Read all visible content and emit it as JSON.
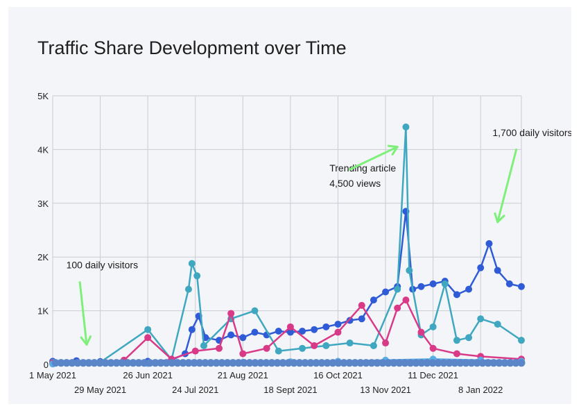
{
  "chart_data": {
    "type": "line",
    "title": "Traffic Share Development over Time",
    "xlabel": "",
    "ylabel": "",
    "x_range": [
      "2021-05-01",
      "2022-02-01"
    ],
    "ylim": [
      0,
      5000
    ],
    "y_ticks": [
      {
        "value": 0,
        "label": "0"
      },
      {
        "value": 1000,
        "label": "1K"
      },
      {
        "value": 2000,
        "label": "2K"
      },
      {
        "value": 3000,
        "label": "3K"
      },
      {
        "value": 4000,
        "label": "4K"
      },
      {
        "value": 5000,
        "label": "5K"
      }
    ],
    "x_ticks": [
      {
        "date": "2021-05-01",
        "label": "1 May 2021"
      },
      {
        "date": "2021-05-29",
        "label": "29 May 2021"
      },
      {
        "date": "2021-06-26",
        "label": "26 Jun 2021"
      },
      {
        "date": "2021-07-24",
        "label": "24 Jul 2021"
      },
      {
        "date": "2021-08-21",
        "label": "21 Aug 2021"
      },
      {
        "date": "2021-09-18",
        "label": "18 Sept 2021"
      },
      {
        "date": "2021-10-16",
        "label": "16 Oct 2021"
      },
      {
        "date": "2021-11-13",
        "label": "13 Nov 2021"
      },
      {
        "date": "2021-12-11",
        "label": "11 Dec 2021"
      },
      {
        "date": "2022-01-08",
        "label": "8 Jan 2022"
      }
    ],
    "grid": true,
    "legend": "none",
    "series": [
      {
        "color": "#2f5bd6",
        "points": [
          [
            "2021-05-01",
            60
          ],
          [
            "2021-05-15",
            70
          ],
          [
            "2021-05-29",
            55
          ],
          [
            "2021-06-12",
            45
          ],
          [
            "2021-06-26",
            60
          ],
          [
            "2021-07-10",
            80
          ],
          [
            "2021-07-18",
            200
          ],
          [
            "2021-07-22",
            650
          ],
          [
            "2021-07-26",
            900
          ],
          [
            "2021-07-30",
            500
          ],
          [
            "2021-08-07",
            450
          ],
          [
            "2021-08-14",
            550
          ],
          [
            "2021-08-21",
            500
          ],
          [
            "2021-08-28",
            600
          ],
          [
            "2021-09-04",
            550
          ],
          [
            "2021-09-11",
            620
          ],
          [
            "2021-09-18",
            600
          ],
          [
            "2021-09-25",
            620
          ],
          [
            "2021-10-02",
            650
          ],
          [
            "2021-10-09",
            700
          ],
          [
            "2021-10-16",
            750
          ],
          [
            "2021-10-23",
            820
          ],
          [
            "2021-10-30",
            850
          ],
          [
            "2021-11-06",
            1200
          ],
          [
            "2021-11-13",
            1350
          ],
          [
            "2021-11-20",
            1450
          ],
          [
            "2021-11-25",
            2850
          ],
          [
            "2021-11-29",
            1400
          ],
          [
            "2021-12-04",
            1450
          ],
          [
            "2021-12-11",
            1500
          ],
          [
            "2021-12-18",
            1550
          ],
          [
            "2021-12-25",
            1300
          ],
          [
            "2022-01-01",
            1400
          ],
          [
            "2022-01-08",
            1800
          ],
          [
            "2022-01-13",
            2250
          ],
          [
            "2022-01-18",
            1750
          ],
          [
            "2022-01-25",
            1500
          ],
          [
            "2022-02-01",
            1450
          ]
        ]
      },
      {
        "color": "#3fa7bf",
        "points": [
          [
            "2021-05-01",
            40
          ],
          [
            "2021-05-29",
            40
          ],
          [
            "2021-06-26",
            650
          ],
          [
            "2021-07-10",
            90
          ],
          [
            "2021-07-20",
            1400
          ],
          [
            "2021-07-22",
            1880
          ],
          [
            "2021-07-25",
            1650
          ],
          [
            "2021-07-29",
            350
          ],
          [
            "2021-08-14",
            850
          ],
          [
            "2021-08-28",
            1000
          ],
          [
            "2021-09-11",
            250
          ],
          [
            "2021-09-25",
            300
          ],
          [
            "2021-10-09",
            350
          ],
          [
            "2021-10-23",
            400
          ],
          [
            "2021-11-06",
            350
          ],
          [
            "2021-11-20",
            1400
          ],
          [
            "2021-11-25",
            4420
          ],
          [
            "2021-11-27",
            1750
          ],
          [
            "2021-12-04",
            550
          ],
          [
            "2021-12-11",
            700
          ],
          [
            "2021-12-18",
            1500
          ],
          [
            "2021-12-25",
            450
          ],
          [
            "2022-01-01",
            500
          ],
          [
            "2022-01-08",
            850
          ],
          [
            "2022-01-18",
            750
          ],
          [
            "2022-02-01",
            450
          ]
        ]
      },
      {
        "color": "#d93a88",
        "points": [
          [
            "2021-05-01",
            30
          ],
          [
            "2021-05-29",
            30
          ],
          [
            "2021-06-12",
            80
          ],
          [
            "2021-06-26",
            500
          ],
          [
            "2021-07-10",
            100
          ],
          [
            "2021-07-24",
            250
          ],
          [
            "2021-08-07",
            300
          ],
          [
            "2021-08-14",
            950
          ],
          [
            "2021-08-21",
            200
          ],
          [
            "2021-09-04",
            300
          ],
          [
            "2021-09-18",
            700
          ],
          [
            "2021-10-02",
            350
          ],
          [
            "2021-10-16",
            600
          ],
          [
            "2021-10-30",
            1100
          ],
          [
            "2021-11-13",
            400
          ],
          [
            "2021-11-20",
            1050
          ],
          [
            "2021-11-25",
            1200
          ],
          [
            "2021-12-04",
            600
          ],
          [
            "2021-12-11",
            300
          ],
          [
            "2021-12-25",
            200
          ],
          [
            "2022-01-08",
            150
          ],
          [
            "2022-02-01",
            100
          ]
        ]
      },
      {
        "color": "#5aaee6",
        "points": [
          [
            "2021-05-01",
            10
          ],
          [
            "2021-06-26",
            20
          ],
          [
            "2021-07-24",
            30
          ],
          [
            "2021-08-21",
            40
          ],
          [
            "2021-09-18",
            50
          ],
          [
            "2021-10-16",
            60
          ],
          [
            "2021-11-13",
            80
          ],
          [
            "2021-12-11",
            100
          ],
          [
            "2022-01-08",
            80
          ],
          [
            "2022-02-01",
            60
          ]
        ]
      }
    ],
    "annotations": [
      {
        "text": "100 daily visitors",
        "date": "2021-05-09",
        "value": 1790
      },
      {
        "text": "Trending article",
        "date": "2021-10-11",
        "value": 3590
      },
      {
        "text": "4,500 views",
        "date": "2021-10-11",
        "value": 3310
      },
      {
        "text": "1,700 daily visitors",
        "date": "2022-01-15",
        "value": 4250
      }
    ],
    "arrows": [
      {
        "from": [
          "2021-05-17",
          1530
        ],
        "to": [
          "2021-05-21",
          370
        ]
      },
      {
        "from": [
          "2021-10-23",
          3630
        ],
        "to": [
          "2021-11-20",
          4050
        ]
      },
      {
        "from": [
          "2022-01-29",
          4000
        ],
        "to": [
          "2022-01-18",
          2650
        ]
      }
    ],
    "arrow_color": "#7ef07a",
    "grid_color": "#c9ccd4"
  }
}
